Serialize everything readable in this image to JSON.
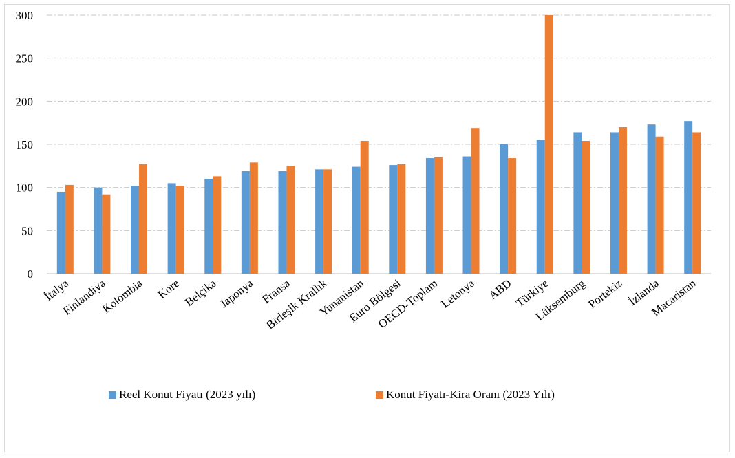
{
  "chart_data": {
    "type": "bar",
    "categories": [
      "İtalya",
      "Finlandiya",
      "Kolombia",
      "Kore",
      "Belçika",
      "Japonya",
      "Fransa",
      "Birleşik Krallık",
      "Yunanistan",
      "Euro Bölgesi",
      "OECD-Toplam",
      "Letonya",
      "ABD",
      "Türkiye",
      "Lüksemburg",
      "Portekiz",
      "İzlanda",
      "Macaristan"
    ],
    "series": [
      {
        "name": "Reel Konut Fiyatı (2023 yılı)",
        "color": "#5b9bd5",
        "values": [
          95,
          100,
          102,
          105,
          110,
          119,
          119,
          121,
          124,
          126,
          134,
          136,
          150,
          155,
          164,
          164,
          173,
          177
        ]
      },
      {
        "name": "Konut Fiyatı-Kira Oranı (2023 Yılı)",
        "color": "#ed7d31",
        "values": [
          103,
          92,
          127,
          102,
          113,
          129,
          125,
          121,
          154,
          127,
          135,
          169,
          134,
          300,
          154,
          170,
          159,
          164
        ]
      }
    ],
    "ylim": [
      0,
      300
    ],
    "yticks": [
      0,
      50,
      100,
      150,
      200,
      250,
      300
    ],
    "grid": "horizontal dash-dot",
    "legend_position": "bottom",
    "title": "",
    "xlabel": "",
    "ylabel": ""
  }
}
